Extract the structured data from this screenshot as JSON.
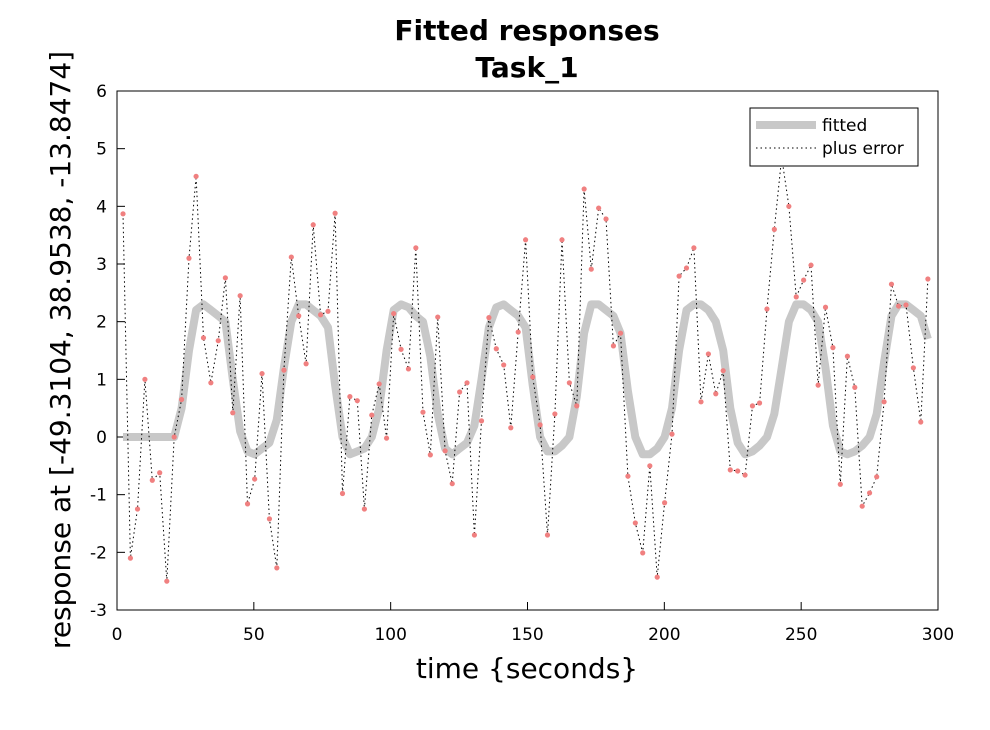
{
  "chart_data": {
    "type": "line",
    "title": [
      "Fitted responses",
      "Task_1"
    ],
    "xlabel": "time {seconds}",
    "ylabel": "response at [-49.3104, 38.9538, -13.8474]",
    "x": [
      2.2,
      4.9,
      7.5,
      10.2,
      12.9,
      15.6,
      18.2,
      20.9,
      23.6,
      26.3,
      28.9,
      31.6,
      34.3,
      37.0,
      39.6,
      42.3,
      45.0,
      47.7,
      50.3,
      53.0,
      55.7,
      58.4,
      61.0,
      63.7,
      66.4,
      69.1,
      71.7,
      74.4,
      77.1,
      79.7,
      82.4,
      85.1,
      87.8,
      90.4,
      93.1,
      95.8,
      98.5,
      101.1,
      103.8,
      106.5,
      109.2,
      111.8,
      114.5,
      117.2,
      119.9,
      122.5,
      125.2,
      127.9,
      130.6,
      133.2,
      135.9,
      138.6,
      141.3,
      143.9,
      146.6,
      149.3,
      151.9,
      154.6,
      157.3,
      160.0,
      162.6,
      165.3,
      168.0,
      170.7,
      173.3,
      176.0,
      178.7,
      181.4,
      184.0,
      186.7,
      189.4,
      192.1,
      194.7,
      197.4,
      200.1,
      202.8,
      205.4,
      208.1,
      210.8,
      213.4,
      216.1,
      218.8,
      221.5,
      224.1,
      226.8,
      229.5,
      232.2,
      234.8,
      237.5,
      240.2,
      242.9,
      245.5,
      248.2,
      250.9,
      253.6,
      256.2,
      258.9,
      261.6,
      264.3,
      266.9,
      269.6,
      272.3,
      275.0,
      277.6,
      280.3,
      283.0,
      285.6,
      288.3,
      291.0,
      293.7,
      296.3
    ],
    "series": [
      {
        "name": "fitted",
        "color": "#c8c8c8",
        "line_width": 8,
        "line_style": "solid",
        "values": [
          0,
          0,
          0,
          0,
          0,
          0,
          0,
          0,
          0.5,
          1.5,
          2.2,
          2.3,
          2.2,
          2.1,
          2.0,
          1.0,
          0.1,
          -0.25,
          -0.3,
          -0.2,
          -0.1,
          0.3,
          1.2,
          2.0,
          2.3,
          2.3,
          2.2,
          2.1,
          1.9,
          0.9,
          0.0,
          -0.3,
          -0.25,
          -0.2,
          0.0,
          0.5,
          1.5,
          2.2,
          2.3,
          2.25,
          2.1,
          2.0,
          1.4,
          0.4,
          -0.2,
          -0.3,
          -0.2,
          -0.1,
          0.2,
          1.0,
          1.9,
          2.25,
          2.3,
          2.2,
          2.1,
          1.9,
          0.9,
          0.0,
          -0.25,
          -0.25,
          -0.15,
          0.0,
          0.7,
          1.8,
          2.3,
          2.3,
          2.2,
          2.1,
          1.8,
          0.8,
          0.0,
          -0.3,
          -0.3,
          -0.2,
          0.0,
          0.5,
          1.5,
          2.2,
          2.3,
          2.3,
          2.2,
          2.0,
          1.5,
          0.5,
          -0.1,
          -0.3,
          -0.25,
          -0.15,
          0.0,
          0.4,
          1.2,
          2.0,
          2.3,
          2.3,
          2.2,
          2.0,
          1.2,
          0.2,
          -0.25,
          -0.3,
          -0.25,
          -0.15,
          0.0,
          0.4,
          1.3,
          2.1,
          2.3,
          2.3,
          2.2,
          2.1,
          1.7
        ]
      },
      {
        "name": "plus error",
        "color": "#000000",
        "line_width": 1,
        "line_style": "dotted",
        "marker_color": "#f08080",
        "values": [
          3.87,
          -2.1,
          -1.25,
          1.0,
          -0.75,
          -0.62,
          -2.5,
          0.0,
          0.65,
          3.1,
          4.52,
          1.72,
          0.94,
          1.67,
          2.76,
          0.42,
          2.45,
          -1.16,
          -0.73,
          1.1,
          -1.42,
          -2.27,
          1.16,
          3.12,
          2.1,
          1.27,
          3.68,
          2.12,
          2.18,
          3.88,
          -0.98,
          0.7,
          0.63,
          -1.25,
          0.38,
          0.92,
          -0.02,
          2.14,
          1.52,
          1.18,
          3.28,
          0.43,
          -0.31,
          2.08,
          -0.24,
          -0.81,
          0.78,
          0.94,
          -1.7,
          0.28,
          2.07,
          1.53,
          1.25,
          0.16,
          1.82,
          3.42,
          1.04,
          0.21,
          -1.7,
          0.4,
          3.42,
          0.94,
          0.54,
          4.3,
          2.91,
          3.97,
          3.78,
          1.58,
          1.8,
          -0.68,
          -1.49,
          -2.01,
          -0.5,
          -2.43,
          -1.14,
          0.05,
          2.79,
          2.93,
          3.28,
          0.61,
          1.44,
          0.75,
          1.15,
          -0.57,
          -0.59,
          -0.66,
          0.54,
          0.59,
          2.22,
          3.6,
          4.85,
          4.0,
          2.43,
          2.72,
          2.98,
          0.9,
          2.25,
          1.55,
          -0.82,
          1.4,
          0.86,
          -1.2,
          -0.97,
          -0.69,
          0.61,
          2.65,
          2.27,
          2.29,
          1.2,
          0.26,
          2.74
        ]
      }
    ],
    "xlim": [
      0,
      300
    ],
    "xticks": [
      0,
      50,
      100,
      150,
      200,
      250,
      300
    ],
    "ylim": [
      -3,
      6
    ],
    "yticks": [
      -3,
      -2,
      -1,
      0,
      1,
      2,
      3,
      4,
      5,
      6
    ],
    "grid": false,
    "legend": "northeast"
  }
}
